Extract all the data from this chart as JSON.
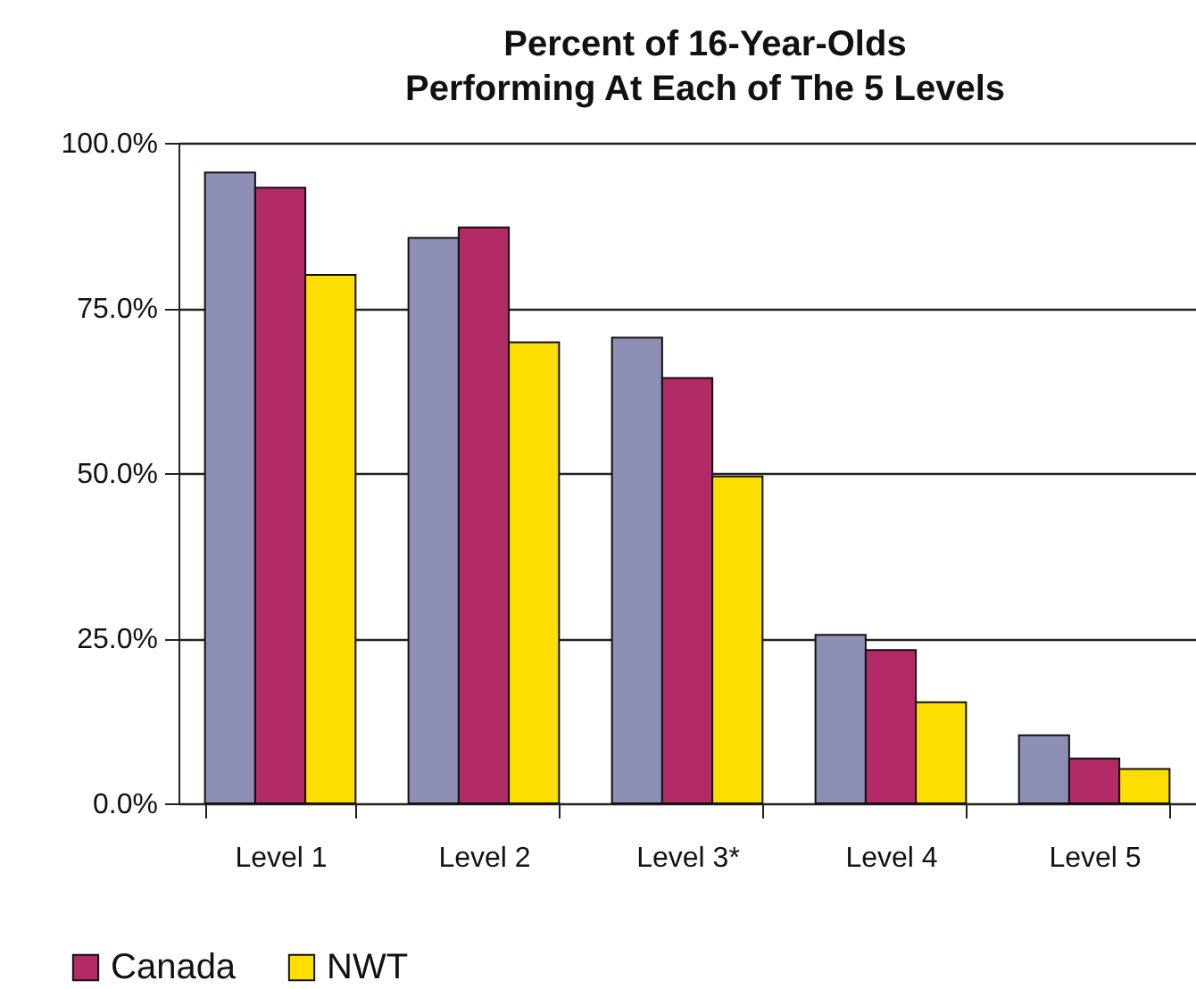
{
  "chart_data": {
    "type": "bar",
    "title": "Percent of 16-Year-Olds\nPerforming At Each of The 5 Levels",
    "categories": [
      "Level 1",
      "Level 2",
      "Level 3*",
      "Level 4",
      "Level 5"
    ],
    "series": [
      {
        "color": "#8e8fb5",
        "values": [
          95.5,
          85.6,
          70.5,
          25.5,
          10.3
        ]
      },
      {
        "name": "Canada",
        "color": "#b22a66",
        "values": [
          93.2,
          87.2,
          64.4,
          23.2,
          6.8
        ]
      },
      {
        "name": "NWT",
        "color": "#fedd00",
        "values": [
          80.0,
          69.8,
          49.5,
          15.3,
          5.2
        ]
      }
    ],
    "ylim": [
      0,
      100
    ],
    "yticks": [
      {
        "value": 0,
        "label": "0.0%"
      },
      {
        "value": 25,
        "label": "25.0%"
      },
      {
        "value": 50,
        "label": "50.0%"
      },
      {
        "value": 75,
        "label": "75.0%"
      },
      {
        "value": 100,
        "label": "100.0%"
      }
    ],
    "grid": "y",
    "legend": "bottom left"
  }
}
